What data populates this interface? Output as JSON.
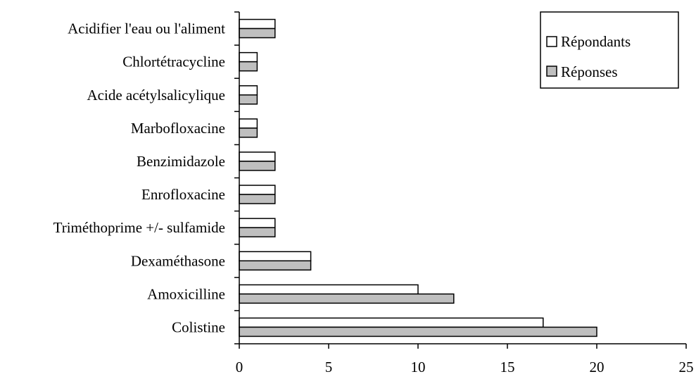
{
  "chart_data": {
    "type": "bar",
    "orientation": "horizontal",
    "title": "",
    "xlabel": "",
    "ylabel": "",
    "categories": [
      "Colistine",
      "Amoxicilline",
      "Dexaméthasone",
      "Triméthoprime +/- sulfamide",
      "Enrofloxacine",
      "Benzimidazole",
      "Marbofloxacine",
      "Acide acétylsalicylique",
      "Chlortétracycline",
      "Acidifier l'eau ou l'aliment"
    ],
    "series": [
      {
        "name": "Répondants",
        "color": "#ffffff",
        "values": [
          17,
          10,
          4,
          2,
          2,
          2,
          1,
          1,
          1,
          2
        ]
      },
      {
        "name": "Réponses",
        "color": "#bfbfbf",
        "values": [
          20,
          12,
          4,
          2,
          2,
          2,
          1,
          1,
          1,
          2
        ]
      }
    ],
    "xlim": [
      0,
      25
    ],
    "xticks": [
      "0",
      "5",
      "10",
      "15",
      "20",
      "25"
    ],
    "grid": false,
    "legend_position": "top-right"
  }
}
